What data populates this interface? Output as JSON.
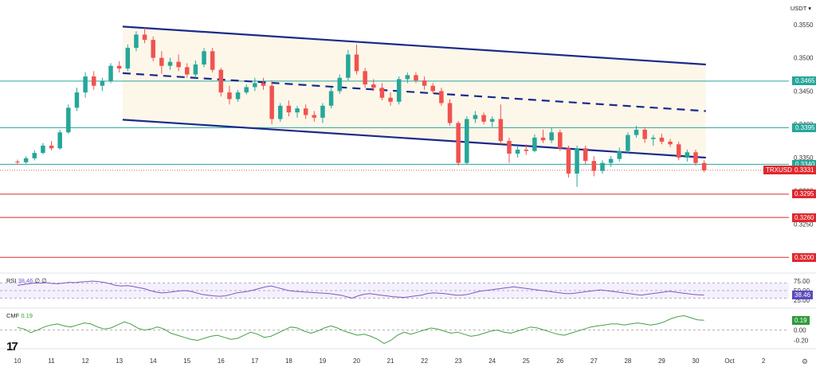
{
  "currency": "USDT",
  "chart_data": {
    "type": "candlestick",
    "symbol_label": "TRXUSDT",
    "symbol_price": "0.3331",
    "price_ticks": [
      "0.3550",
      "0.3500",
      "0.3450",
      "0.3400",
      "0.3350",
      "0.3300",
      "0.3250"
    ],
    "ylim": [
      0.318,
      0.3575
    ],
    "x_ticks": [
      "10",
      "11",
      "12",
      "13",
      "14",
      "15",
      "16",
      "17",
      "18",
      "19",
      "20",
      "21",
      "22",
      "23",
      "24",
      "25",
      "26",
      "27",
      "28",
      "29",
      "30",
      "Oct",
      "2",
      "3"
    ],
    "levels": [
      {
        "value": 0.3465,
        "label": "0.3465",
        "color": "#26a69a",
        "style": "teal"
      },
      {
        "value": 0.3395,
        "label": "0.3395",
        "color": "#26a69a",
        "style": "teal-fill"
      },
      {
        "value": 0.334,
        "label": "0.3340",
        "color": "#26a69a",
        "style": "teal-fill"
      },
      {
        "value": 0.3295,
        "label": "0.3295",
        "color": "#e0282e",
        "style": "red"
      },
      {
        "value": 0.326,
        "label": "0.3260",
        "color": "#e0282e",
        "style": "red"
      },
      {
        "value": 0.32,
        "label": "0.3200",
        "color": "#e0282e",
        "style": "red"
      }
    ],
    "channel": {
      "upper": [
        [
          13.1,
          0.3547
        ],
        [
          30.3,
          0.349
        ]
      ],
      "middle": [
        [
          13.1,
          0.3477
        ],
        [
          30.3,
          0.342
        ]
      ],
      "lower": [
        [
          13.1,
          0.3407
        ],
        [
          30.3,
          0.335
        ]
      ]
    },
    "candles": [
      [
        10.0,
        0.3344,
        0.3347,
        0.3339,
        0.3343
      ],
      [
        10.25,
        0.3343,
        0.3352,
        0.3341,
        0.3349
      ],
      [
        10.5,
        0.3349,
        0.3361,
        0.3346,
        0.3357
      ],
      [
        10.75,
        0.3357,
        0.3372,
        0.3355,
        0.3368
      ],
      [
        11.0,
        0.3368,
        0.3375,
        0.3361,
        0.3364
      ],
      [
        11.25,
        0.3364,
        0.3392,
        0.3362,
        0.3388
      ],
      [
        11.5,
        0.3388,
        0.343,
        0.3386,
        0.3425
      ],
      [
        11.75,
        0.3425,
        0.3455,
        0.342,
        0.3448
      ],
      [
        12.0,
        0.3448,
        0.3478,
        0.344,
        0.3472
      ],
      [
        12.25,
        0.3472,
        0.348,
        0.3452,
        0.3458
      ],
      [
        12.5,
        0.3458,
        0.347,
        0.345,
        0.3465
      ],
      [
        12.75,
        0.3465,
        0.3492,
        0.3462,
        0.3488
      ],
      [
        13.0,
        0.3488,
        0.3495,
        0.3478,
        0.3484
      ],
      [
        13.25,
        0.3484,
        0.352,
        0.348,
        0.3515
      ],
      [
        13.5,
        0.3515,
        0.354,
        0.351,
        0.3535
      ],
      [
        13.75,
        0.3535,
        0.3545,
        0.3522,
        0.3527
      ],
      [
        14.0,
        0.3527,
        0.3532,
        0.3495,
        0.35
      ],
      [
        14.25,
        0.35,
        0.351,
        0.3476,
        0.3488
      ],
      [
        14.5,
        0.3488,
        0.35,
        0.3482,
        0.3494
      ],
      [
        14.75,
        0.3494,
        0.3505,
        0.348,
        0.3486
      ],
      [
        15.0,
        0.3486,
        0.3492,
        0.347,
        0.3475
      ],
      [
        15.25,
        0.3475,
        0.3496,
        0.347,
        0.349
      ],
      [
        15.5,
        0.349,
        0.3515,
        0.3486,
        0.351
      ],
      [
        15.75,
        0.351,
        0.3515,
        0.3478,
        0.3482
      ],
      [
        16.0,
        0.3482,
        0.3485,
        0.3442,
        0.3448
      ],
      [
        16.25,
        0.3448,
        0.3458,
        0.343,
        0.3438
      ],
      [
        16.5,
        0.3438,
        0.3452,
        0.3434,
        0.3448
      ],
      [
        16.75,
        0.3448,
        0.346,
        0.3445,
        0.3456
      ],
      [
        17.0,
        0.3456,
        0.347,
        0.345,
        0.3462
      ],
      [
        17.25,
        0.3462,
        0.347,
        0.3452,
        0.3458
      ],
      [
        17.5,
        0.3458,
        0.3466,
        0.34,
        0.3408
      ],
      [
        17.75,
        0.3408,
        0.3432,
        0.3404,
        0.3428
      ],
      [
        18.0,
        0.3428,
        0.3436,
        0.3412,
        0.3418
      ],
      [
        18.25,
        0.3418,
        0.3428,
        0.341,
        0.3424
      ],
      [
        18.5,
        0.3424,
        0.343,
        0.3408,
        0.3414
      ],
      [
        18.75,
        0.3414,
        0.342,
        0.3404,
        0.341
      ],
      [
        19.0,
        0.341,
        0.3432,
        0.3402,
        0.3428
      ],
      [
        19.25,
        0.3428,
        0.3455,
        0.3424,
        0.345
      ],
      [
        19.5,
        0.345,
        0.3475,
        0.3446,
        0.347
      ],
      [
        19.75,
        0.347,
        0.3512,
        0.3466,
        0.3505
      ],
      [
        20.0,
        0.3505,
        0.352,
        0.3475,
        0.348
      ],
      [
        20.25,
        0.348,
        0.3485,
        0.3455,
        0.346
      ],
      [
        20.5,
        0.346,
        0.3468,
        0.345,
        0.3455
      ],
      [
        20.75,
        0.3455,
        0.3462,
        0.3436,
        0.344
      ],
      [
        21.0,
        0.344,
        0.3448,
        0.3428,
        0.3434
      ],
      [
        21.25,
        0.3434,
        0.3472,
        0.343,
        0.3468
      ],
      [
        21.5,
        0.3468,
        0.3478,
        0.3462,
        0.3474
      ],
      [
        21.75,
        0.3474,
        0.3478,
        0.3462,
        0.3466
      ],
      [
        22.0,
        0.3466,
        0.3472,
        0.3452,
        0.3458
      ],
      [
        22.25,
        0.3458,
        0.3462,
        0.3446,
        0.345
      ],
      [
        22.5,
        0.345,
        0.3455,
        0.3428,
        0.3432
      ],
      [
        22.75,
        0.3432,
        0.3438,
        0.3398,
        0.3402
      ],
      [
        23.0,
        0.3402,
        0.3405,
        0.3338,
        0.3342
      ],
      [
        23.25,
        0.3342,
        0.3412,
        0.334,
        0.3408
      ],
      [
        23.5,
        0.3408,
        0.342,
        0.3402,
        0.3414
      ],
      [
        23.75,
        0.3414,
        0.3418,
        0.34,
        0.3404
      ],
      [
        24.0,
        0.3404,
        0.3412,
        0.3396,
        0.3408
      ],
      [
        24.25,
        0.3408,
        0.343,
        0.337,
        0.3375
      ],
      [
        24.5,
        0.3375,
        0.338,
        0.3342,
        0.3356
      ],
      [
        24.75,
        0.3356,
        0.3368,
        0.335,
        0.3362
      ],
      [
        25.0,
        0.3362,
        0.337,
        0.3354,
        0.336
      ],
      [
        25.25,
        0.336,
        0.3385,
        0.3358,
        0.338
      ],
      [
        25.5,
        0.338,
        0.3392,
        0.3372,
        0.3376
      ],
      [
        25.75,
        0.3376,
        0.3395,
        0.3372,
        0.3388
      ],
      [
        26.0,
        0.3388,
        0.3392,
        0.336,
        0.3364
      ],
      [
        26.25,
        0.3364,
        0.3368,
        0.332,
        0.3326
      ],
      [
        26.5,
        0.3326,
        0.3368,
        0.3306,
        0.3364
      ],
      [
        26.75,
        0.3364,
        0.3368,
        0.334,
        0.3345
      ],
      [
        27.0,
        0.3345,
        0.3352,
        0.3322,
        0.333
      ],
      [
        27.25,
        0.333,
        0.3346,
        0.3326,
        0.3342
      ],
      [
        27.5,
        0.3342,
        0.3352,
        0.3336,
        0.3348
      ],
      [
        27.75,
        0.3348,
        0.3365,
        0.3344,
        0.336
      ],
      [
        28.0,
        0.336,
        0.3388,
        0.3356,
        0.3384
      ],
      [
        28.25,
        0.3384,
        0.3398,
        0.338,
        0.3392
      ],
      [
        28.5,
        0.3392,
        0.3396,
        0.3372,
        0.3378
      ],
      [
        28.75,
        0.3378,
        0.3384,
        0.3368,
        0.338
      ],
      [
        29.0,
        0.338,
        0.3386,
        0.337,
        0.3374
      ],
      [
        29.25,
        0.3374,
        0.3378,
        0.3366,
        0.337
      ],
      [
        29.5,
        0.337,
        0.3374,
        0.3346,
        0.335
      ],
      [
        29.75,
        0.335,
        0.3362,
        0.3344,
        0.3358
      ],
      [
        30.0,
        0.3358,
        0.3362,
        0.3338,
        0.3342
      ],
      [
        30.25,
        0.3342,
        0.3346,
        0.3328,
        0.3331
      ]
    ],
    "rsi": {
      "label": "RSI",
      "value": "38.46",
      "extra": "∅ ∅",
      "ticks": [
        "75.00",
        "50.00",
        "25.00"
      ],
      "series": [
        64,
        66,
        68,
        70,
        70,
        71,
        69,
        68,
        70,
        72,
        71,
        73,
        74,
        75,
        74,
        72,
        68,
        64,
        62,
        63,
        61,
        58,
        55,
        50,
        46,
        44,
        45,
        47,
        49,
        50,
        48,
        44,
        40,
        38,
        36,
        35,
        36,
        40,
        44,
        46,
        48,
        52,
        56,
        60,
        62,
        58,
        54,
        50,
        48,
        47,
        46,
        45,
        44,
        43,
        42,
        40,
        38,
        34,
        30,
        36,
        40,
        42,
        40,
        38,
        36,
        34,
        33,
        32,
        34,
        36,
        38,
        42,
        44,
        43,
        42,
        40,
        38,
        38,
        40,
        44,
        48,
        50,
        52,
        54,
        56,
        58,
        60,
        58,
        56,
        54,
        52,
        50,
        48,
        46,
        44,
        42,
        42,
        44,
        46,
        48,
        50,
        52,
        50,
        48,
        46,
        44,
        42,
        40,
        38,
        40,
        42,
        44,
        46,
        48,
        46,
        44,
        42,
        40,
        39,
        38.46
      ]
    },
    "cmf": {
      "label": "CMF",
      "value": "0.19",
      "ticks": [
        "0.20",
        "0.00",
        "-0.20"
      ],
      "series": [
        0.05,
        0.02,
        -0.05,
        0.0,
        0.06,
        0.1,
        0.12,
        0.08,
        0.06,
        0.1,
        0.14,
        0.12,
        0.06,
        0.02,
        0.04,
        0.1,
        0.16,
        0.12,
        0.04,
        0.0,
        0.02,
        0.06,
        0.02,
        -0.06,
        -0.1,
        -0.14,
        -0.18,
        -0.2,
        -0.16,
        -0.12,
        -0.1,
        -0.14,
        -0.18,
        -0.16,
        -0.1,
        -0.04,
        -0.08,
        -0.14,
        -0.12,
        -0.06,
        0.0,
        0.06,
        0.04,
        -0.02,
        -0.06,
        -0.02,
        0.04,
        0.08,
        0.04,
        -0.02,
        -0.06,
        -0.1,
        -0.08,
        -0.12,
        -0.18,
        -0.26,
        -0.2,
        -0.1,
        -0.04,
        -0.08,
        -0.04,
        0.0,
        0.04,
        0.02,
        -0.02,
        -0.06,
        -0.04,
        -0.08,
        -0.12,
        -0.1,
        -0.06,
        -0.02,
        0.0,
        -0.04,
        -0.06,
        -0.02,
        0.02,
        0.06,
        0.04,
        0.0,
        -0.04,
        -0.08,
        -0.1,
        -0.06,
        -0.02,
        0.02,
        0.06,
        0.08,
        0.1,
        0.12,
        0.12,
        0.1,
        0.12,
        0.14,
        0.12,
        0.1,
        0.12,
        0.16,
        0.22,
        0.26,
        0.28,
        0.24,
        0.2,
        0.19
      ]
    }
  }
}
